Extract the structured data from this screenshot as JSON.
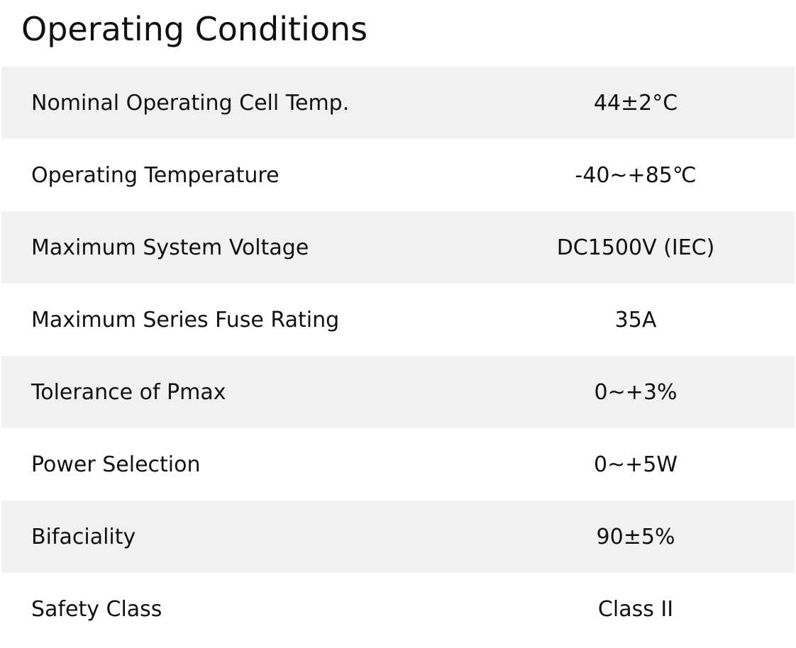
{
  "header": {
    "title": "Operating Conditions"
  },
  "table": {
    "rows": [
      [
        "Nominal Operating Cell Temp.",
        "44±2°C"
      ],
      [
        "Operating Temperature",
        "-40~+85℃"
      ],
      [
        "Maximum System Voltage",
        "DC1500V (IEC)"
      ],
      [
        "Maximum Series Fuse Rating",
        "35A"
      ],
      [
        "Tolerance of Pmax",
        "0~+3%"
      ],
      [
        "Power Selection",
        "0~+5W"
      ],
      [
        "Bifaciality",
        "90±5%"
      ],
      [
        "Safety Class",
        "Class II"
      ]
    ]
  }
}
